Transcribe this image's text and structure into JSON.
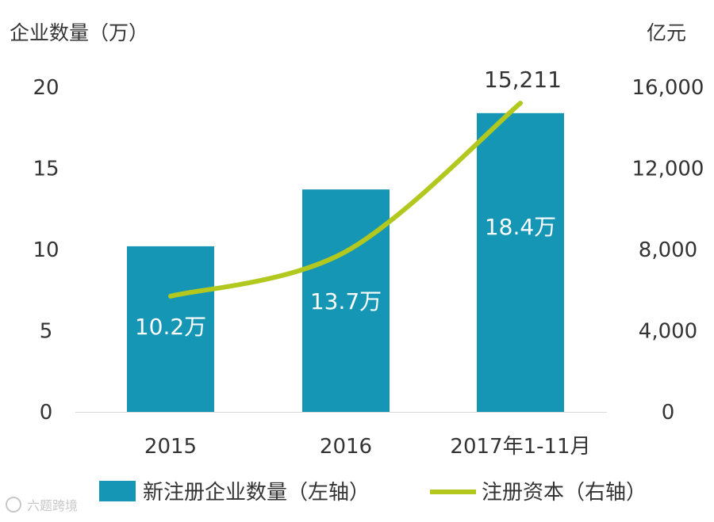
{
  "chart_data": {
    "type": "bar",
    "categories": [
      "2015",
      "2016",
      "2017年1-11月"
    ],
    "series": [
      {
        "name": "新注册企业数量（左轴）",
        "type": "bar",
        "axis": "left",
        "values": [
          10.2,
          13.7,
          18.4
        ],
        "data_labels": [
          "10.2万",
          "13.7万",
          "18.4万"
        ],
        "color": "#1596b4"
      },
      {
        "name": "注册资本（右轴）",
        "type": "line",
        "axis": "right",
        "values": [
          5700,
          7900,
          15211
        ],
        "data_labels": [
          "",
          "",
          "15,211"
        ],
        "color": "#b3c81e"
      }
    ],
    "ylabel_left": "企业数量（万）",
    "ylabel_right": "亿元",
    "ylim_left": [
      0,
      20
    ],
    "yticks_left": [
      "0",
      "5",
      "10",
      "15",
      "20"
    ],
    "ylim_right": [
      0,
      16000
    ],
    "yticks_right": [
      "0",
      "4,000",
      "8,000",
      "12,000",
      "16,000"
    ],
    "grid": false,
    "legend_position": "bottom"
  },
  "watermark": "六题跨境"
}
